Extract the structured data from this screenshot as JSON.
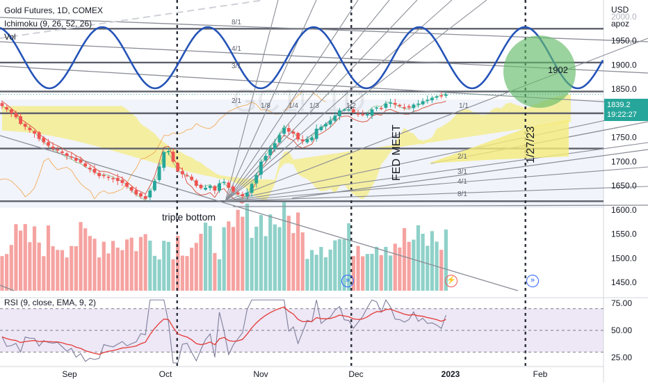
{
  "header": {
    "symbol_line": "Gold Futures, 1D, COMEX",
    "ichimoku_line": "Ichimoku (9, 26, 52, 26)",
    "vol_line": "Vol",
    "rsi_line": "RSI (9, close, EMA, 9, 2)"
  },
  "price_axis": {
    "currency": "USD",
    "mode": "apoz",
    "ticks": [
      "2000.0",
      "1950.0",
      "1900.0",
      "1850.0",
      "1800.0",
      "1750.0",
      "1700.0",
      "1650.0",
      "1600.0",
      "1550.0",
      "1500.0",
      "1450.0"
    ],
    "last_price": "1839.2",
    "countdown": "19:22:27",
    "last_price_color": "#26a69a"
  },
  "rsi_axis": {
    "ticks": [
      "75.00",
      "50.00",
      "25.00"
    ]
  },
  "time_axis": {
    "ticks": [
      "Sep",
      "Oct",
      "Nov",
      "Dec",
      "2023",
      "Feb"
    ]
  },
  "annotations": {
    "triple_bottom": "triple bottom",
    "fed_meet": "FED MEET",
    "date_note": "1/27/23",
    "target": "1902",
    "fan_labels": [
      "8/1",
      "4/1",
      "3/1",
      "2/1",
      "1/8",
      "1/4",
      "1/3",
      "1/2",
      "1/1",
      "2/1",
      "3/1",
      "4/1",
      "8/1"
    ],
    "watermark": "GC1!, 1D"
  },
  "colors": {
    "up": "#26a69a",
    "down": "#ef5350",
    "vol_up": "#8fd1c9",
    "vol_down": "#f5a3a1",
    "cloud": "#f5eb7a",
    "wave": "#2453b8",
    "rsi_band": "#ede7f6",
    "rsi_line": "#7e7e9a",
    "rsi_ma": "#e53935",
    "circle": "#66bb6a"
  },
  "chart_data": {
    "type": "candlestick",
    "title": "Gold Futures, 1D, COMEX",
    "xlabel": "",
    "ylabel": "USD",
    "ylim": [
      1430,
      2020
    ],
    "x_range": [
      "2022-08-05",
      "2023-02-22"
    ],
    "grid": false,
    "horizontal_levels": [
      1975,
      1905,
      1845,
      1800,
      1727,
      1618
    ],
    "vertical_markers": [
      "2022-10-03",
      "2022-11-30",
      "2023-01-27"
    ],
    "series": [
      {
        "type": "candlestick",
        "ohlc_close_approx": [
          1815,
          1808,
          1800,
          1792,
          1778,
          1772,
          1765,
          1758,
          1747,
          1740,
          1733,
          1727,
          1723,
          1718,
          1712,
          1709,
          1702,
          1698,
          1690,
          1684,
          1677,
          1670,
          1670,
          1668,
          1664,
          1660,
          1656,
          1648,
          1640,
          1632,
          1628,
          1623,
          1640,
          1660,
          1690,
          1720,
          1722,
          1700,
          1680,
          1674,
          1670,
          1662,
          1650,
          1645,
          1646,
          1650,
          1640,
          1655,
          1658,
          1646,
          1638,
          1632,
          1628,
          1636,
          1654,
          1672,
          1700,
          1712,
          1726,
          1738,
          1755,
          1770,
          1762,
          1758,
          1746,
          1742,
          1746,
          1750,
          1768,
          1772,
          1778,
          1785,
          1795,
          1806,
          1808,
          1808,
          1802,
          1798,
          1796,
          1798,
          1808,
          1812,
          1810,
          1820,
          1822,
          1818,
          1815,
          1812,
          1812,
          1818,
          1820,
          1825,
          1828,
          1832,
          1835,
          1836,
          1839
        ]
      }
    ],
    "ichimoku": {
      "params": [
        9,
        26,
        52,
        26
      ]
    },
    "volume": {
      "ylim": [
        0,
        100
      ]
    },
    "rsi": {
      "params": [
        9,
        "close",
        "EMA",
        9,
        2
      ],
      "ylim": [
        18,
        82
      ],
      "levels": [
        70,
        50,
        30
      ],
      "last": 64,
      "last_ma": 60
    }
  }
}
